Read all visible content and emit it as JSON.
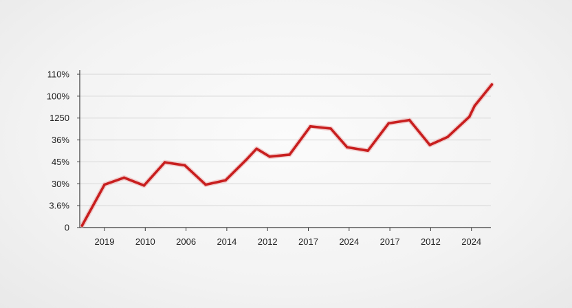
{
  "chart_data": {
    "type": "line",
    "title": "",
    "xlabel": "",
    "ylabel": "",
    "grid": true,
    "legend": "none",
    "color": "#c81e1e",
    "y_tick_labels": [
      "0",
      "3.6%",
      "30%",
      "45%",
      "36%",
      "1250",
      "100%",
      "110%"
    ],
    "x_tick_labels": [
      "2019",
      "2010",
      "2006",
      "2014",
      "2012",
      "2017",
      "2024",
      "2017",
      "2012",
      "2024"
    ],
    "ylim": [
      0,
      7
    ],
    "xlim": [
      -0.55,
      9.5
    ],
    "series": [
      {
        "x": [
          -0.55,
          0,
          0.48,
          0.97,
          1.48,
          1.97,
          2.48,
          2.97,
          3.48,
          3.73,
          4.05,
          4.54,
          5.05,
          5.55,
          5.95,
          6.46,
          6.97,
          7.48,
          7.98,
          8.42,
          8.95,
          9.08,
          9.5
        ],
        "y": [
          0.09,
          1.96,
          2.28,
          1.92,
          2.98,
          2.84,
          1.96,
          2.16,
          3.1,
          3.6,
          3.24,
          3.33,
          4.62,
          4.52,
          3.67,
          3.51,
          4.76,
          4.91,
          3.77,
          4.14,
          5.06,
          5.56,
          6.53
        ]
      }
    ]
  }
}
